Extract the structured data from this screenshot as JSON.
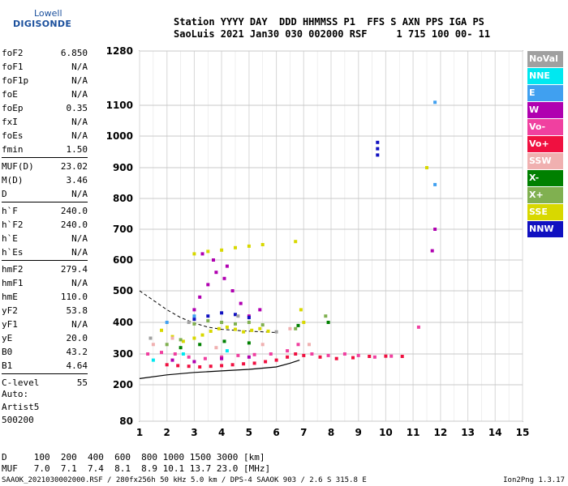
{
  "logo": {
    "line1": "Lowell",
    "line2": "DIGISONDE"
  },
  "header": {
    "line1": "Station YYYY DAY  DDD HHMMSS P1  FFS S AXN PPS IGA PS",
    "line2": "SaoLuis 2021 Jan30 030 002000 RSF     1 715 100 00- 11"
  },
  "params": [
    [
      {
        "k": "foF2",
        "v": "6.850"
      },
      {
        "k": "foF1",
        "v": "N/A"
      },
      {
        "k": "foF1p",
        "v": "N/A"
      },
      {
        "k": "foE",
        "v": "N/A"
      },
      {
        "k": "foEp",
        "v": "0.35"
      },
      {
        "k": "fxI",
        "v": "N/A"
      },
      {
        "k": "foEs",
        "v": "N/A"
      },
      {
        "k": "fmin",
        "v": "1.50"
      }
    ],
    [
      {
        "k": "MUF(D)",
        "v": "23.02"
      },
      {
        "k": "M(D)",
        "v": "3.46"
      },
      {
        "k": "D",
        "v": "N/A"
      }
    ],
    [
      {
        "k": "h`F",
        "v": "240.0"
      },
      {
        "k": "h`F2",
        "v": "240.0"
      },
      {
        "k": "h`E",
        "v": "N/A"
      },
      {
        "k": "h`Es",
        "v": "N/A"
      }
    ],
    [
      {
        "k": "hmF2",
        "v": "279.4"
      },
      {
        "k": "hmF1",
        "v": "N/A"
      },
      {
        "k": "hmE",
        "v": "110.0"
      },
      {
        "k": "yF2",
        "v": "53.8"
      },
      {
        "k": "yF1",
        "v": "N/A"
      },
      {
        "k": "yE",
        "v": "20.0"
      },
      {
        "k": "B0",
        "v": "43.2"
      },
      {
        "k": "B1",
        "v": "4.64"
      }
    ],
    [
      {
        "k": "C-level",
        "v": "55"
      }
    ]
  ],
  "auto": {
    "line1": "Auto:",
    "line2": "Artist5",
    "line3": "500200"
  },
  "legend": [
    {
      "label": "NoVal",
      "color": "#a0a0a0"
    },
    {
      "label": "NNE",
      "color": "#00e8f0"
    },
    {
      "label": "E",
      "color": "#40a0f0"
    },
    {
      "label": "W",
      "color": "#b000b0"
    },
    {
      "label": "Vo-",
      "color": "#f040a0"
    },
    {
      "label": "Vo+",
      "color": "#f01040"
    },
    {
      "label": "SSW",
      "color": "#f0b0b0"
    },
    {
      "label": "X-",
      "color": "#008000"
    },
    {
      "label": "X+",
      "color": "#80b050"
    },
    {
      "label": "SSE",
      "color": "#d8d800"
    },
    {
      "label": "NNW",
      "color": "#1010c0"
    }
  ],
  "bottom": {
    "line1": "D     100  200  400  600  800 1000 1500 3000 [km]",
    "line2": "MUF   7.0  7.1  7.4  8.1  8.9 10.1 13.7 23.0 [MHz]"
  },
  "footer": "SAAOK_2021030002000.RSF / 280fx256h 50 kHz 5.0 km / DPS-4 SAAOK 903 / 2.6 S 315.8 E",
  "version": "Ion2Png 1.3.17",
  "chart_data": {
    "type": "scatter",
    "title": "",
    "xlabel": "",
    "ylabel": "",
    "xlim": [
      1,
      15
    ],
    "ylim": [
      80,
      1280
    ],
    "x_ticks": [
      1,
      2,
      3,
      4,
      5,
      6,
      7,
      8,
      9,
      10,
      11,
      12,
      13,
      14,
      15
    ],
    "y_ticks": [
      80,
      200,
      300,
      400,
      500,
      600,
      700,
      800,
      900,
      1000,
      1100,
      1280
    ],
    "grid": true,
    "legend_position": "right",
    "series": [
      {
        "name": "Vo+",
        "color": "#f01040",
        "points": [
          [
            2.0,
            265
          ],
          [
            2.4,
            262
          ],
          [
            2.8,
            260
          ],
          [
            3.2,
            258
          ],
          [
            3.6,
            260
          ],
          [
            4.0,
            262
          ],
          [
            4.4,
            265
          ],
          [
            4.8,
            268
          ],
          [
            5.2,
            270
          ],
          [
            5.6,
            275
          ],
          [
            6.0,
            280
          ],
          [
            6.4,
            290
          ],
          [
            6.7,
            300
          ],
          [
            7.0,
            295
          ],
          [
            7.6,
            290
          ],
          [
            8.2,
            285
          ],
          [
            8.8,
            288
          ],
          [
            9.4,
            292
          ],
          [
            10.0,
            293
          ],
          [
            10.6,
            292
          ]
        ]
      },
      {
        "name": "Vo-",
        "color": "#f040a0",
        "points": [
          [
            1.3,
            300
          ],
          [
            1.8,
            305
          ],
          [
            2.3,
            300
          ],
          [
            2.8,
            290
          ],
          [
            3.4,
            285
          ],
          [
            4.0,
            290
          ],
          [
            4.6,
            295
          ],
          [
            5.2,
            298
          ],
          [
            5.8,
            300
          ],
          [
            6.4,
            310
          ],
          [
            6.8,
            330
          ],
          [
            7.3,
            300
          ],
          [
            7.9,
            295
          ],
          [
            8.5,
            300
          ],
          [
            9.0,
            295
          ],
          [
            9.6,
            290
          ],
          [
            10.2,
            293
          ],
          [
            11.2,
            385
          ]
        ]
      },
      {
        "name": "SSE",
        "color": "#d8d800",
        "points": [
          [
            3.0,
            350
          ],
          [
            3.3,
            360
          ],
          [
            3.6,
            372
          ],
          [
            3.9,
            380
          ],
          [
            4.2,
            385
          ],
          [
            4.5,
            378
          ],
          [
            4.8,
            370
          ],
          [
            5.1,
            375
          ],
          [
            5.4,
            380
          ],
          [
            5.7,
            372
          ],
          [
            3.0,
            620
          ],
          [
            3.5,
            628
          ],
          [
            4.0,
            632
          ],
          [
            4.5,
            640
          ],
          [
            5.0,
            645
          ],
          [
            5.5,
            650
          ],
          [
            6.7,
            660
          ],
          [
            7.0,
            400
          ],
          [
            6.9,
            440
          ],
          [
            1.8,
            375
          ],
          [
            2.2,
            355
          ],
          [
            2.6,
            340
          ],
          [
            11.5,
            900
          ]
        ]
      },
      {
        "name": "X+",
        "color": "#80b050",
        "points": [
          [
            2.0,
            330
          ],
          [
            2.5,
            345
          ],
          [
            3.0,
            395
          ],
          [
            3.5,
            405
          ],
          [
            4.0,
            400
          ],
          [
            4.5,
            395
          ],
          [
            5.0,
            400
          ],
          [
            5.5,
            392
          ],
          [
            6.7,
            380
          ],
          [
            7.8,
            420
          ]
        ]
      },
      {
        "name": "X-",
        "color": "#008000",
        "points": [
          [
            2.5,
            320
          ],
          [
            3.2,
            330
          ],
          [
            4.1,
            340
          ],
          [
            5.0,
            335
          ],
          [
            6.8,
            390
          ],
          [
            7.9,
            400
          ]
        ]
      },
      {
        "name": "W",
        "color": "#b000b0",
        "points": [
          [
            3.0,
            440
          ],
          [
            3.2,
            480
          ],
          [
            3.5,
            520
          ],
          [
            3.8,
            560
          ],
          [
            4.1,
            540
          ],
          [
            4.4,
            500
          ],
          [
            4.7,
            460
          ],
          [
            5.0,
            420
          ],
          [
            5.4,
            440
          ],
          [
            3.3,
            620
          ],
          [
            3.7,
            600
          ],
          [
            4.2,
            580
          ],
          [
            2.2,
            280
          ],
          [
            3.0,
            275
          ],
          [
            4.0,
            285
          ],
          [
            5.0,
            290
          ],
          [
            11.8,
            700
          ],
          [
            11.7,
            630
          ]
        ]
      },
      {
        "name": "NNW",
        "color": "#1010c0",
        "points": [
          [
            3.0,
            410
          ],
          [
            3.5,
            420
          ],
          [
            4.0,
            430
          ],
          [
            4.5,
            425
          ],
          [
            5.0,
            415
          ],
          [
            9.7,
            980
          ],
          [
            9.7,
            960
          ],
          [
            9.7,
            940
          ]
        ]
      },
      {
        "name": "E",
        "color": "#40a0f0",
        "points": [
          [
            2.0,
            400
          ],
          [
            3.0,
            420
          ],
          [
            11.8,
            845
          ],
          [
            11.8,
            1110
          ]
        ]
      },
      {
        "name": "NNE",
        "color": "#00e8f0",
        "points": [
          [
            1.5,
            280
          ],
          [
            2.6,
            300
          ],
          [
            4.2,
            310
          ]
        ]
      },
      {
        "name": "SSW",
        "color": "#f0b0b0",
        "points": [
          [
            1.5,
            330
          ],
          [
            2.2,
            350
          ],
          [
            3.8,
            320
          ],
          [
            5.5,
            330
          ],
          [
            6.5,
            380
          ],
          [
            7.2,
            330
          ]
        ]
      },
      {
        "name": "NoVal",
        "color": "#a0a0a0",
        "points": [
          [
            1.4,
            350
          ],
          [
            2.8,
            400
          ],
          [
            4.6,
            420
          ],
          [
            6.0,
            370
          ]
        ]
      }
    ],
    "model_profile": {
      "solid": [
        [
          1.0,
          220
        ],
        [
          2.0,
          232
        ],
        [
          3.0,
          240
        ],
        [
          4.0,
          245
        ],
        [
          5.0,
          250
        ],
        [
          6.0,
          258
        ],
        [
          6.5,
          270
        ],
        [
          6.85,
          280
        ]
      ],
      "dashed": [
        [
          1.0,
          500
        ],
        [
          1.5,
          470
        ],
        [
          2.0,
          440
        ],
        [
          2.5,
          415
        ],
        [
          3.0,
          398
        ],
        [
          3.5,
          385
        ],
        [
          4.0,
          378
        ],
        [
          5.0,
          372
        ],
        [
          6.0,
          368
        ]
      ]
    }
  }
}
